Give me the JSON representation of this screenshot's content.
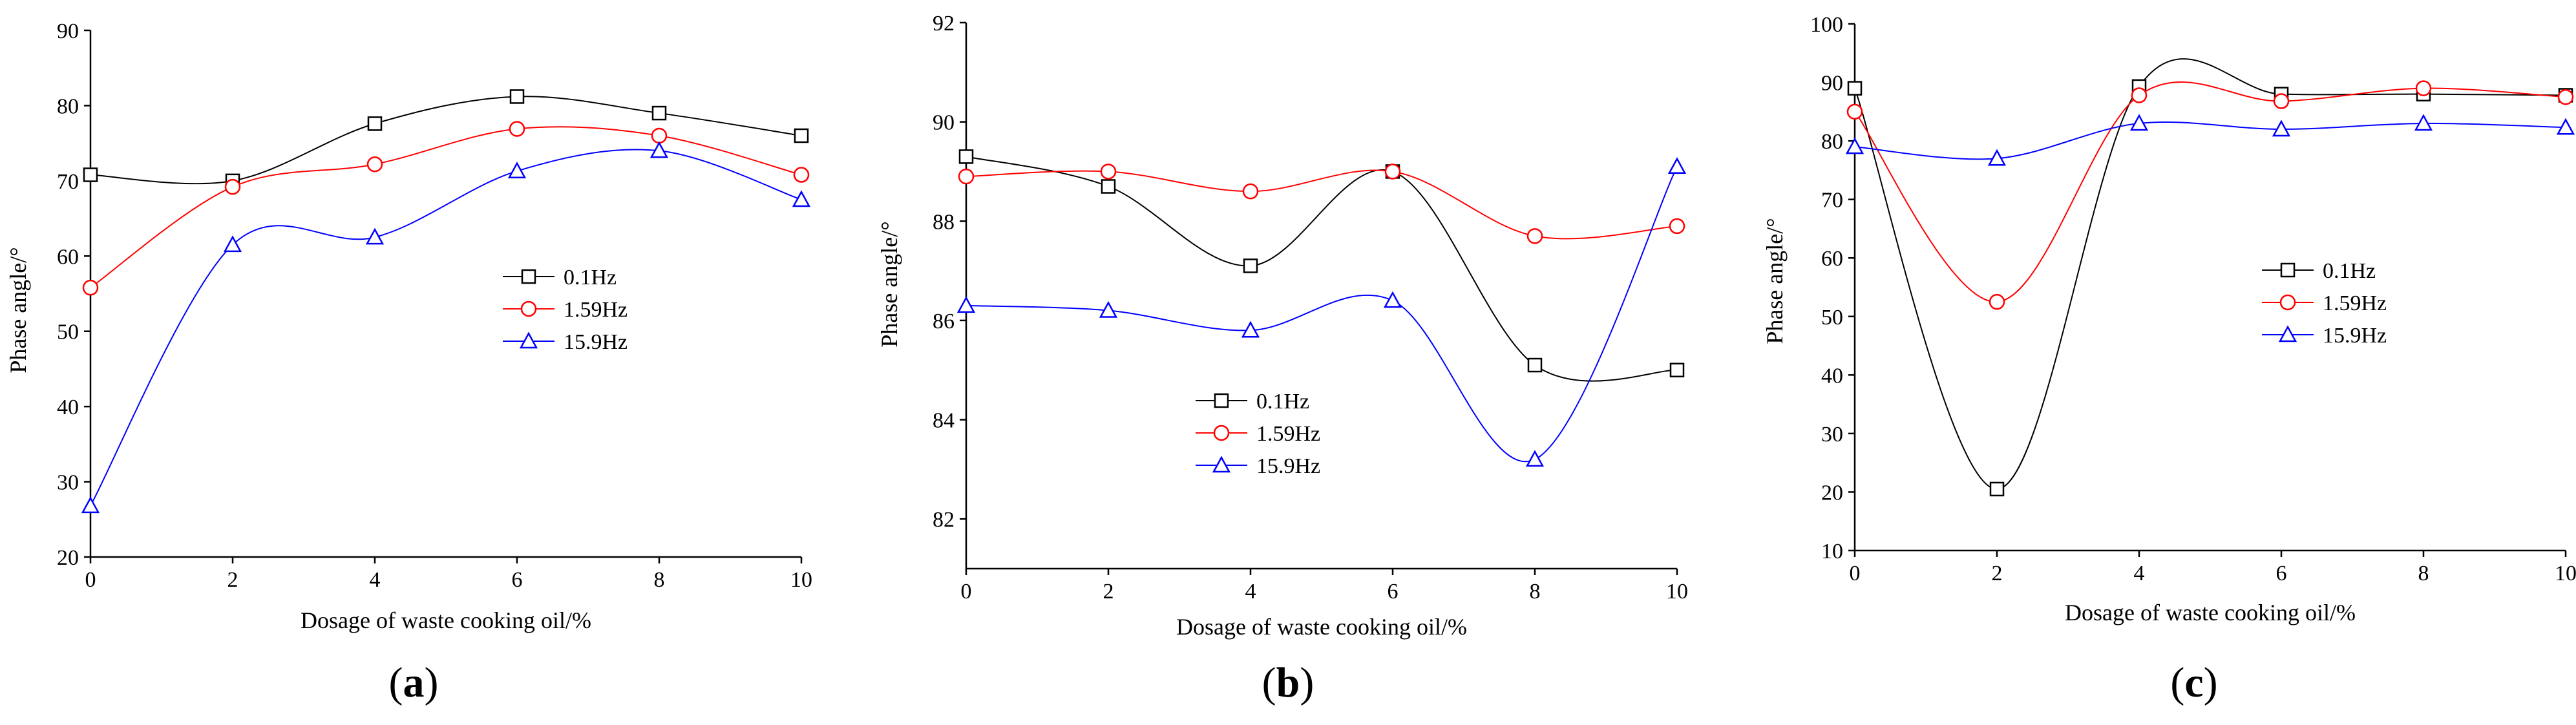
{
  "chart_data": [
    {
      "type": "line",
      "panel_label": "a",
      "xlabel": "Dosage of waste cooking oil/%",
      "ylabel": "Phase angle/°",
      "xlim": [
        0,
        10
      ],
      "ylim": [
        20,
        90
      ],
      "xticks": [
        0,
        2,
        4,
        6,
        8,
        10
      ],
      "yticks": [
        20,
        30,
        40,
        50,
        60,
        70,
        80,
        90
      ],
      "legend_position": "center-right",
      "x": [
        0,
        2,
        4,
        6,
        8,
        10
      ],
      "series": [
        {
          "name": "0.1Hz",
          "marker": "square",
          "color": "#000000",
          "values": [
            70.8,
            70.0,
            77.6,
            81.2,
            79.0,
            76.0
          ]
        },
        {
          "name": "1.59Hz",
          "marker": "circle",
          "color": "#ff0000",
          "values": [
            55.8,
            69.2,
            72.2,
            76.9,
            76.0,
            70.8
          ]
        },
        {
          "name": "15.9Hz",
          "marker": "triangle",
          "color": "#0000ff",
          "values": [
            26.8,
            61.5,
            62.5,
            71.3,
            74.0,
            67.5
          ]
        }
      ]
    },
    {
      "type": "line",
      "panel_label": "b",
      "xlabel": "Dosage of waste cooking oil/%",
      "ylabel": "Phase angle/°",
      "xlim": [
        0,
        10
      ],
      "ylim": [
        81,
        92
      ],
      "xticks": [
        0,
        2,
        4,
        6,
        8,
        10
      ],
      "yticks": [
        82,
        84,
        86,
        88,
        90,
        92
      ],
      "legend_position": "center-left",
      "x": [
        0,
        2,
        4,
        6,
        8,
        10
      ],
      "series": [
        {
          "name": "0.1Hz",
          "marker": "square",
          "color": "#000000",
          "values": [
            89.3,
            88.7,
            87.1,
            89.0,
            85.1,
            85.0
          ]
        },
        {
          "name": "1.59Hz",
          "marker": "circle",
          "color": "#ff0000",
          "values": [
            88.9,
            89.0,
            88.6,
            89.0,
            87.7,
            87.9
          ]
        },
        {
          "name": "15.9Hz",
          "marker": "triangle",
          "color": "#0000ff",
          "values": [
            86.3,
            86.2,
            85.8,
            86.4,
            83.2,
            89.1
          ]
        }
      ]
    },
    {
      "type": "line",
      "panel_label": "c",
      "xlabel": "Dosage of waste cooking oil/%",
      "ylabel": "Phase angle/°",
      "xlim": [
        0,
        10
      ],
      "ylim": [
        10,
        100
      ],
      "xticks": [
        0,
        2,
        4,
        6,
        8,
        10
      ],
      "yticks": [
        10,
        20,
        30,
        40,
        50,
        60,
        70,
        80,
        90,
        100
      ],
      "legend_position": "center-right",
      "x": [
        0,
        2,
        4,
        6,
        8,
        10
      ],
      "series": [
        {
          "name": "0.1Hz",
          "marker": "square",
          "color": "#000000",
          "values": [
            89.0,
            20.5,
            89.3,
            88.0,
            88.0,
            87.8
          ]
        },
        {
          "name": "1.59Hz",
          "marker": "circle",
          "color": "#ff0000",
          "values": [
            85.0,
            52.5,
            87.8,
            86.8,
            89.0,
            87.5
          ]
        },
        {
          "name": "15.9Hz",
          "marker": "triangle",
          "color": "#0000ff",
          "values": [
            79.0,
            77.0,
            83.0,
            82.0,
            83.0,
            82.3
          ]
        }
      ]
    }
  ]
}
